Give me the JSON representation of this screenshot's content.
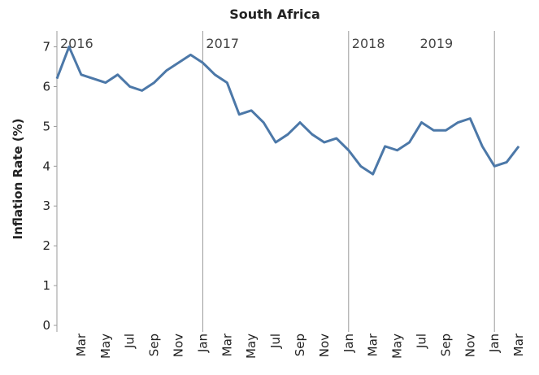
{
  "chart_data": {
    "type": "line",
    "title": "South Africa",
    "y_label": "Inflation Rate (%)",
    "categories": [
      null,
      null,
      "Mar",
      null,
      "May",
      null,
      "Jul",
      null,
      "Sep",
      null,
      "Nov",
      null,
      "Jan",
      null,
      "Mar",
      null,
      "May",
      null,
      "Jul",
      null,
      "Sep",
      null,
      "Nov",
      null,
      "Jan",
      null,
      "Mar",
      null,
      "May",
      null,
      "Jul",
      null,
      "Sep",
      null,
      "Nov",
      null,
      "Jan",
      null,
      "Mar"
    ],
    "series": [
      {
        "name": "South Africa",
        "color": "#4c78a8",
        "values": [
          6.2,
          7.0,
          6.3,
          6.2,
          6.1,
          6.3,
          6.0,
          5.9,
          6.1,
          6.4,
          6.6,
          6.8,
          6.6,
          6.3,
          6.1,
          5.3,
          5.4,
          5.1,
          4.6,
          4.8,
          5.1,
          4.8,
          4.6,
          4.7,
          4.4,
          4.0,
          3.8,
          4.5,
          4.4,
          4.6,
          5.1,
          4.9,
          4.9,
          5.1,
          5.2,
          4.5,
          4.0,
          4.1,
          4.5
        ]
      }
    ],
    "annotations": [
      {
        "label": "2016",
        "at": 0
      },
      {
        "label": "2017",
        "at": 12
      },
      {
        "label": "2018",
        "at": 24
      },
      {
        "label": "2019",
        "at": 36
      }
    ],
    "ylim": [
      0,
      7.4
    ],
    "yticks": [
      0,
      1,
      2,
      3,
      4,
      5,
      6,
      7
    ],
    "grid": false
  }
}
